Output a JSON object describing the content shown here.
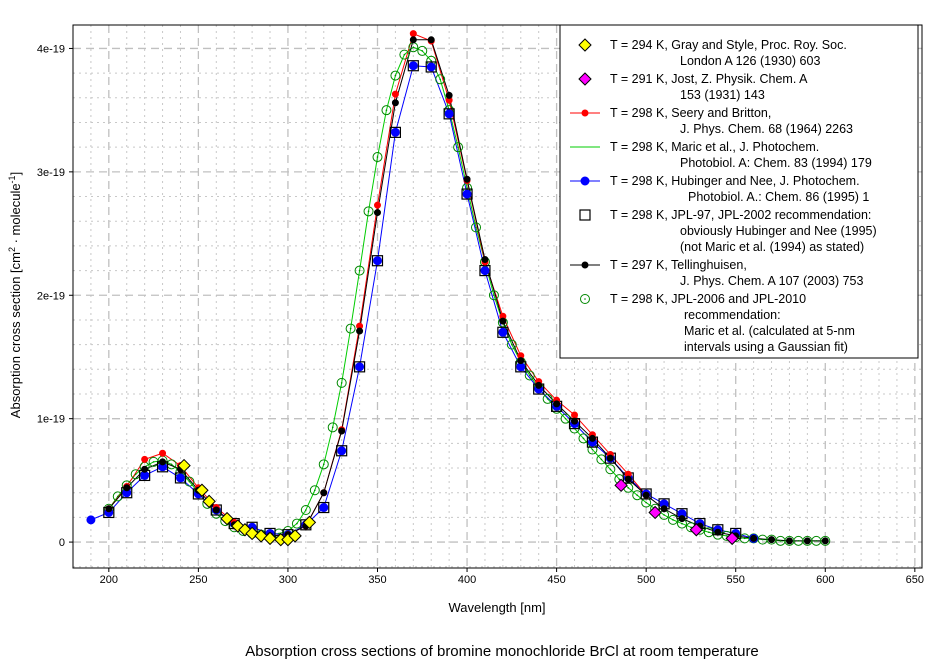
{
  "chart_data": {
    "type": "line",
    "title": "Absorption cross sections of bromine monochloride  BrCl at room temperature",
    "xlabel": "Wavelength [nm]",
    "ylabel": {
      "main": "Absorption cross section [cm",
      "sup1": "2",
      "mid": " · molecule",
      "sup2": "-1",
      "end": "]"
    },
    "xlim": [
      180,
      654
    ],
    "ylim": [
      -2.1e-20,
      4.19e-19
    ],
    "xticks": [
      200,
      250,
      300,
      350,
      400,
      450,
      500,
      550,
      600,
      650
    ],
    "yticks": [
      {
        "v": 0,
        "label": "0"
      },
      {
        "v": 1e-19,
        "label": "1e-19"
      },
      {
        "v": 2e-19,
        "label": "2e-19"
      },
      {
        "v": 3e-19,
        "label": "3e-19"
      },
      {
        "v": 4e-19,
        "label": "4e-19"
      }
    ],
    "grid": true,
    "legend_position": "top-right",
    "y_unit": 1e-19,
    "series": [
      {
        "name": "Maric",
        "legend": [
          "T = 298 K, Maric et al., J. Photochem.",
          "Photobiol. A: Chem. 83 (1994) 179"
        ],
        "color": "#00cc00",
        "line": true,
        "marker": "none",
        "x": [
          200,
          205,
          210,
          215,
          220,
          225,
          230,
          235,
          240,
          245,
          250,
          255,
          260,
          265,
          270,
          275,
          280,
          285,
          290,
          295,
          300,
          305,
          310,
          315,
          320,
          325,
          330,
          335,
          340,
          345,
          350,
          355,
          360,
          365,
          370,
          375,
          380,
          385,
          390,
          395,
          400,
          405,
          410,
          415,
          420,
          425,
          430,
          435,
          440,
          445,
          450,
          455,
          460,
          465,
          470,
          475,
          480,
          485,
          490,
          495,
          500,
          505,
          510,
          515,
          520,
          525,
          530,
          535,
          540,
          545,
          550,
          555,
          560,
          565,
          570,
          575,
          580,
          585,
          590,
          595,
          600
        ],
        "y": [
          0.27,
          0.37,
          0.46,
          0.55,
          0.61,
          0.65,
          0.66,
          0.63,
          0.57,
          0.49,
          0.4,
          0.31,
          0.23,
          0.17,
          0.12,
          0.09,
          0.07,
          0.06,
          0.06,
          0.07,
          0.09,
          0.15,
          0.26,
          0.42,
          0.63,
          0.93,
          1.29,
          1.73,
          2.2,
          2.68,
          3.12,
          3.5,
          3.78,
          3.95,
          4.01,
          3.98,
          3.9,
          3.75,
          3.5,
          3.2,
          2.87,
          2.55,
          2.27,
          2.0,
          1.78,
          1.6,
          1.46,
          1.35,
          1.25,
          1.16,
          1.08,
          1.0,
          0.92,
          0.84,
          0.75,
          0.67,
          0.59,
          0.51,
          0.44,
          0.38,
          0.32,
          0.27,
          0.22,
          0.18,
          0.15,
          0.12,
          0.1,
          0.08,
          0.06,
          0.05,
          0.04,
          0.03,
          0.03,
          0.02,
          0.02,
          0.01,
          0.01,
          0.01,
          0.01,
          0.01,
          0.01
        ]
      },
      {
        "name": "Hubinger and Nee",
        "legend": [
          "T = 298 K, Hubinger and Nee, J. Photochem.",
          "Photobiol. A.: Chem. 86 (1995) 1"
        ],
        "color": "#0000ff",
        "line": true,
        "marker": "dot",
        "x": [
          190,
          200,
          210,
          220,
          230,
          240,
          250,
          260,
          270,
          280,
          290,
          300,
          310,
          320,
          330,
          340,
          350,
          360,
          370,
          380,
          390,
          400,
          410,
          420,
          430,
          440,
          450,
          460,
          470,
          480,
          490,
          500,
          510,
          520,
          530,
          540,
          550,
          560
        ],
        "y": [
          0.18,
          0.24,
          0.4,
          0.54,
          0.61,
          0.52,
          0.39,
          0.26,
          0.15,
          0.12,
          0.07,
          0.06,
          0.14,
          0.28,
          0.74,
          1.42,
          2.28,
          3.32,
          3.86,
          3.85,
          3.47,
          2.82,
          2.2,
          1.7,
          1.42,
          1.24,
          1.1,
          0.96,
          0.81,
          0.68,
          0.52,
          0.39,
          0.31,
          0.23,
          0.15,
          0.1,
          0.07,
          0.03
        ]
      },
      {
        "name": "Seery and Britton",
        "legend": [
          "T = 298 K, Seery and Britton,",
          "J. Phys. Chem. 68 (1964) 2263"
        ],
        "color": "#ff0000",
        "line": true,
        "marker": "dot",
        "x": [
          200,
          210,
          220,
          230,
          240,
          250,
          260,
          270,
          280,
          290,
          300,
          310,
          320,
          330,
          340,
          350,
          360,
          370,
          380,
          390,
          400,
          410,
          420,
          430,
          440,
          450,
          460,
          470,
          480,
          490,
          500
        ],
        "y": [
          0.27,
          0.45,
          0.67,
          0.72,
          0.62,
          0.44,
          0.28,
          0.16,
          0.08,
          0.05,
          0.06,
          0.13,
          0.4,
          0.91,
          1.75,
          2.73,
          3.63,
          4.12,
          4.06,
          3.58,
          2.93,
          2.27,
          1.83,
          1.51,
          1.3,
          1.15,
          1.03,
          0.87,
          0.71,
          0.55,
          0.38
        ]
      },
      {
        "name": "Tellinghuisen",
        "legend": [
          "T = 297 K, Tellinghuisen,",
          "J. Phys. Chem. A 107 (2003) 753"
        ],
        "color": "#000000",
        "line": true,
        "marker": "dot",
        "x": [
          200,
          210,
          220,
          230,
          240,
          250,
          260,
          270,
          280,
          290,
          300,
          310,
          320,
          330,
          340,
          350,
          360,
          370,
          380,
          390,
          400,
          410,
          420,
          430,
          440,
          450,
          460,
          470,
          480,
          490,
          500,
          510,
          520,
          530,
          540,
          550,
          560,
          570,
          580,
          590,
          600
        ],
        "y": [
          0.27,
          0.44,
          0.59,
          0.65,
          0.59,
          0.42,
          0.26,
          0.14,
          0.07,
          0.05,
          0.06,
          0.13,
          0.4,
          0.9,
          1.71,
          2.67,
          3.56,
          4.07,
          4.07,
          3.62,
          2.94,
          2.29,
          1.79,
          1.47,
          1.27,
          1.12,
          0.98,
          0.84,
          0.68,
          0.51,
          0.38,
          0.27,
          0.19,
          0.13,
          0.08,
          0.05,
          0.03,
          0.02,
          0.01,
          0.01,
          0.01
        ]
      },
      {
        "name": "JPL-97",
        "legend": [
          "T = 298 K, JPL-97, JPL-2002 recommendation:",
          "obviously Hubinger and Nee (1995)",
          "(not Maric et al. (1994) as stated)"
        ],
        "color": "#000000",
        "line": false,
        "marker": "square",
        "x": [
          200,
          210,
          220,
          230,
          240,
          250,
          260,
          270,
          280,
          290,
          300,
          310,
          320,
          330,
          340,
          350,
          360,
          370,
          380,
          390,
          400,
          410,
          420,
          430,
          440,
          450,
          460,
          470,
          480,
          490,
          500,
          510,
          520,
          530,
          540,
          550
        ],
        "y": [
          0.24,
          0.4,
          0.54,
          0.61,
          0.52,
          0.39,
          0.26,
          0.15,
          0.12,
          0.07,
          0.06,
          0.14,
          0.28,
          0.74,
          1.42,
          2.28,
          3.32,
          3.86,
          3.85,
          3.47,
          2.82,
          2.2,
          1.7,
          1.42,
          1.24,
          1.1,
          0.96,
          0.81,
          0.68,
          0.52,
          0.39,
          0.31,
          0.23,
          0.15,
          0.1,
          0.07
        ]
      },
      {
        "name": "JPL-2006",
        "legend": [
          "T = 298 K, JPL-2006 and JPL-2010",
          "recommendation:",
          "Maric et al. (calculated at 5-nm",
          "intervals using a Gaussian fit)"
        ],
        "color": "#008800",
        "line": false,
        "marker": "ocircle",
        "x": [
          200,
          205,
          210,
          215,
          220,
          225,
          230,
          235,
          240,
          245,
          250,
          255,
          260,
          265,
          270,
          275,
          280,
          285,
          290,
          295,
          300,
          305,
          310,
          315,
          320,
          325,
          330,
          335,
          340,
          345,
          350,
          355,
          360,
          365,
          370,
          375,
          380,
          385,
          390,
          395,
          400,
          405,
          410,
          415,
          420,
          425,
          430,
          435,
          440,
          445,
          450,
          455,
          460,
          465,
          470,
          475,
          480,
          485,
          490,
          495,
          500,
          505,
          510,
          515,
          520,
          525,
          530,
          535,
          540,
          545,
          550,
          555,
          560,
          565,
          570,
          575,
          580,
          585,
          590,
          595,
          600
        ],
        "y": [
          0.27,
          0.37,
          0.46,
          0.55,
          0.61,
          0.65,
          0.66,
          0.63,
          0.57,
          0.49,
          0.4,
          0.31,
          0.23,
          0.17,
          0.12,
          0.09,
          0.07,
          0.06,
          0.06,
          0.07,
          0.09,
          0.15,
          0.26,
          0.42,
          0.63,
          0.93,
          1.29,
          1.73,
          2.2,
          2.68,
          3.12,
          3.5,
          3.78,
          3.95,
          4.01,
          3.98,
          3.9,
          3.75,
          3.5,
          3.2,
          2.87,
          2.55,
          2.27,
          2.0,
          1.78,
          1.6,
          1.46,
          1.35,
          1.25,
          1.16,
          1.08,
          1.0,
          0.92,
          0.84,
          0.75,
          0.67,
          0.59,
          0.51,
          0.44,
          0.38,
          0.32,
          0.27,
          0.22,
          0.18,
          0.15,
          0.12,
          0.1,
          0.08,
          0.06,
          0.05,
          0.04,
          0.03,
          0.03,
          0.02,
          0.02,
          0.01,
          0.01,
          0.01,
          0.01,
          0.01,
          0.01
        ]
      },
      {
        "name": "Gray and Style",
        "legend": [
          "T = 294 K, Gray and Style, Proc. Roy. Soc.",
          "London A 126 (1930) 603"
        ],
        "color": "#ffff00",
        "line": false,
        "marker": "diamond",
        "x": [
          242,
          252,
          256,
          266,
          272,
          276,
          280,
          285,
          290,
          296,
          300,
          304,
          312
        ],
        "y": [
          0.62,
          0.42,
          0.33,
          0.19,
          0.13,
          0.1,
          0.07,
          0.05,
          0.03,
          0.02,
          0.02,
          0.05,
          0.16
        ]
      },
      {
        "name": "Jost",
        "legend": [
          "T = 291 K, Jost, Z. Physik. Chem. A",
          "153 (1931) 143"
        ],
        "color": "#ff00ff",
        "line": false,
        "marker": "diamond",
        "x": [
          486,
          505,
          528,
          548
        ],
        "y": [
          0.46,
          0.24,
          0.1,
          0.03
        ]
      }
    ],
    "legend_order": [
      "Gray and Style",
      "Jost",
      "Seery and Britton",
      "Maric",
      "Hubinger and Nee",
      "JPL-97",
      "Tellinghuisen",
      "JPL-2006"
    ]
  }
}
